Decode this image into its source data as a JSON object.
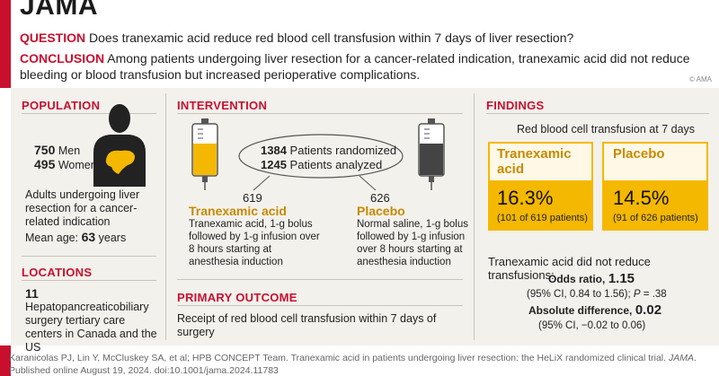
{
  "header": {
    "logo": "JAMA",
    "question_label": "QUESTION",
    "question_text": "Does tranexamic acid reduce red blood cell transfusion within 7 days of liver resection?",
    "conclusion_label": "CONCLUSION",
    "conclusion_text": "Among patients undergoing liver resection for a cancer-related indication, tranexamic acid did not reduce bleeding or blood transfusion but increased perioperative complications.",
    "copyright": "© AMA"
  },
  "population": {
    "title": "POPULATION",
    "men_count": "750",
    "men_label": "Men",
    "women_count": "495",
    "women_label": "Women",
    "description": "Adults undergoing liver resection for a cancer-related indication",
    "age_label": "Mean age:",
    "age_value": "63",
    "age_unit": "years"
  },
  "locations": {
    "title": "LOCATIONS",
    "count": "11",
    "description": "Hepatopancreaticobiliary surgery tertiary care centers in Canada and the US"
  },
  "intervention": {
    "title": "INTERVENTION",
    "randomized_count": "1384",
    "randomized_label": "Patients randomized",
    "analyzed_count": "1245",
    "analyzed_label": "Patients analyzed",
    "arm1_n": "619",
    "arm1_name": "Tranexamic acid",
    "arm1_desc": "Tranexamic acid, 1-g bolus followed by 1-g infusion over 8 hours starting at anesthesia induction",
    "arm2_n": "626",
    "arm2_name": "Placebo",
    "arm2_desc": "Normal saline, 1-g bolus followed by 1-g infusion over 8 hours starting at anesthesia induction"
  },
  "primary_outcome": {
    "title": "PRIMARY OUTCOME",
    "text": "Receipt of red blood cell transfusion within 7 days of surgery"
  },
  "findings": {
    "title": "FINDINGS",
    "subtitle": "Red blood cell transfusion at 7 days",
    "arm1_name": "Tranexamic acid",
    "arm1_pct": "16.3%",
    "arm1_detail": "(101 of 619 patients)",
    "arm2_name": "Placebo",
    "arm2_pct": "14.5%",
    "arm2_detail": "(91 of 626 patients)",
    "conclusion": "Tranexamic acid did not reduce transfusions:",
    "or_label": "Odds ratio,",
    "or_value": "1.15",
    "or_ci_prefix": "(95% CI, 0.84 to 1.56);",
    "or_p_symbol": "P",
    "or_p_value": "= .38",
    "ad_label": "Absolute difference,",
    "ad_value": "0.02",
    "ad_ci": "(95% CI, −0.02 to 0.06)"
  },
  "footer": {
    "citation": "Karanicolas PJ, Lin Y, McCluskey SA, et al; HPB CONCEPT Team. Tranexamic acid in patients undergoing liver resection: the HeLiX randomized clinical trial.",
    "journal": "JAMA",
    "published": "Published online August 19, 2024. doi:10.1001/jama.2024.11783"
  },
  "colors": {
    "accent_red": "#c8102e",
    "gold": "#f5b800",
    "gold_text": "#c88a00",
    "panel_bg": "#f3f1ec"
  },
  "icons": [
    "person-liver-icon",
    "iv-bag-tranexamic-icon",
    "iv-bag-placebo-icon"
  ]
}
